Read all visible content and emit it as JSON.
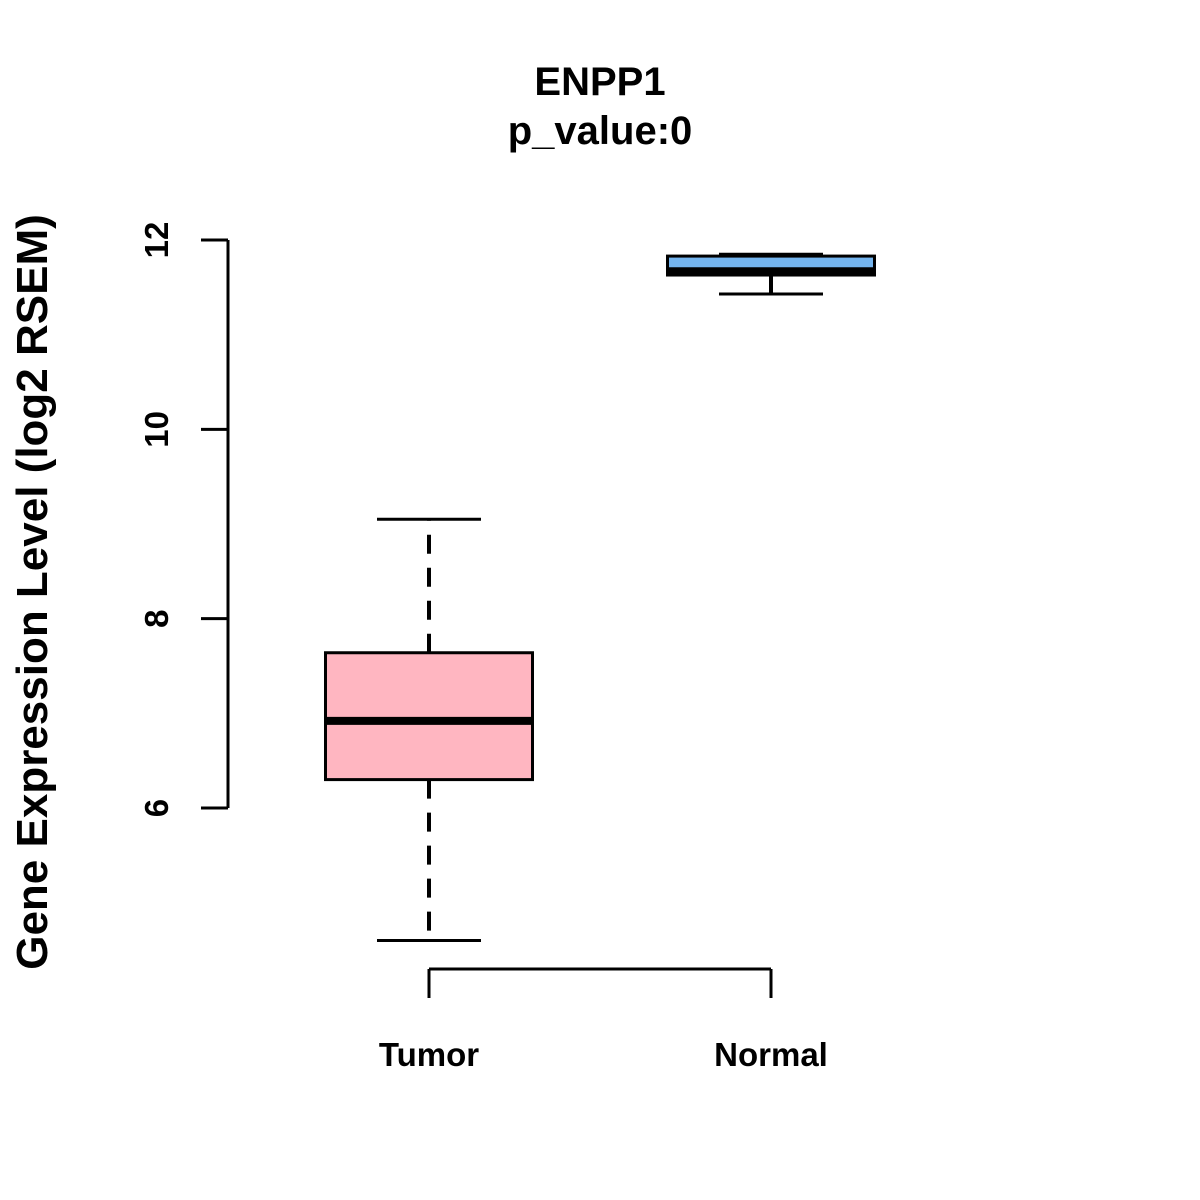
{
  "chart_data": {
    "type": "boxplot",
    "title": "ENPP1",
    "subtitle": "p_value:0",
    "ylabel": "Gene Expression Level (log2 RSEM)",
    "xlabel": "",
    "categories": [
      "Tumor",
      "Normal"
    ],
    "yticks": [
      6,
      8,
      10,
      12
    ],
    "ylim": [
      4.2,
      12.2
    ],
    "grid": false,
    "legend": "none",
    "series": [
      {
        "name": "Tumor",
        "fill_color": "#FFB6C1",
        "whisker_low": 4.6,
        "q1": 6.3,
        "median": 6.92,
        "q3": 7.64,
        "whisker_high": 9.05
      },
      {
        "name": "Normal",
        "fill_color": "#74B4EE",
        "whisker_low": 11.43,
        "q1": 11.63,
        "median": 11.67,
        "q3": 11.83,
        "whisker_high": 11.85
      }
    ],
    "line_color": "#000000",
    "background": "#FFFFFF"
  }
}
